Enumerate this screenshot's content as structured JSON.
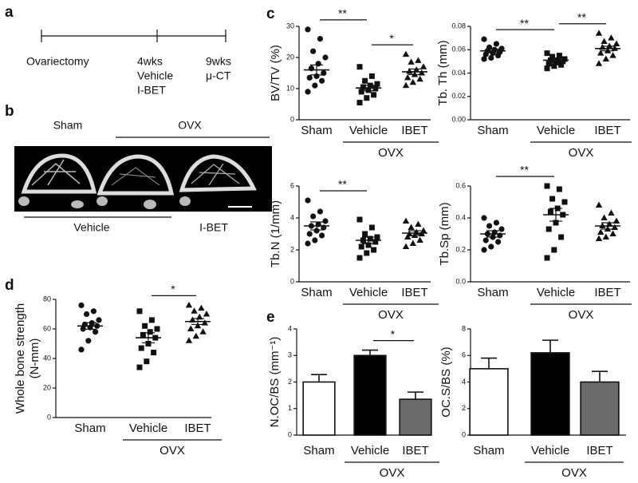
{
  "panel_labels": [
    "a",
    "b",
    "c",
    "d",
    "e"
  ],
  "timeline": {
    "events": [
      {
        "lines": [
          "Ovariectomy"
        ]
      },
      {
        "lines": [
          "4wks",
          "Vehicle",
          "I-BET"
        ]
      },
      {
        "lines": [
          "9wks",
          "μ-CT"
        ]
      }
    ]
  },
  "images": {
    "top_labels": [
      "Sham",
      "OVX"
    ],
    "bottom_labels": [
      "Vehicle",
      "I-BET"
    ]
  },
  "chart_data": [
    {
      "type": "dotplot",
      "y_label": "BV/TV (%)",
      "categories": [
        "Sham",
        "Vehicle",
        "IBET"
      ],
      "group_label": "OVX",
      "group_categories": [
        "Vehicle",
        "IBET"
      ],
      "markers": [
        "circle",
        "square",
        "triangle"
      ],
      "ylim": [
        0,
        30
      ],
      "yticks": [
        0,
        10,
        20,
        30
      ],
      "points": [
        [
          29,
          26,
          22,
          20,
          18,
          16.5,
          15,
          14,
          13.5,
          12.5,
          11,
          9
        ],
        [
          17,
          14,
          12.5,
          11.5,
          11,
          10.5,
          10,
          9.5,
          9,
          8,
          7,
          5.5
        ],
        [
          21,
          19,
          18.5,
          17,
          16,
          15.5,
          15,
          14.5,
          13.5,
          13,
          12,
          11
        ]
      ],
      "means": [
        16,
        10.2,
        15.4
      ],
      "sems": [
        1.6,
        0.9,
        0.9
      ],
      "brackets": [
        {
          "between": [
            "Sham",
            "Vehicle"
          ],
          "label": "**"
        },
        {
          "between": [
            "Vehicle",
            "IBET"
          ],
          "label": "*"
        }
      ]
    },
    {
      "type": "dotplot",
      "y_label": "Tb. Th (mm)",
      "categories": [
        "Sham",
        "Vehicle",
        "IBET"
      ],
      "group_label": "OVX",
      "group_categories": [
        "Vehicle",
        "IBET"
      ],
      "markers": [
        "circle",
        "square",
        "triangle"
      ],
      "ylim": [
        0,
        0.08
      ],
      "yticks": [
        {
          "value": 0,
          "label": "0.00"
        },
        0.02,
        0.04,
        0.06,
        0.08
      ],
      "points": [
        [
          0.069,
          0.065,
          0.062,
          0.061,
          0.06,
          0.059,
          0.058,
          0.057,
          0.056,
          0.055,
          0.053,
          0.052
        ],
        [
          0.057,
          0.055,
          0.054,
          0.052,
          0.051,
          0.051,
          0.05,
          0.049,
          0.048,
          0.047,
          0.046,
          0.044
        ],
        [
          0.074,
          0.07,
          0.067,
          0.065,
          0.063,
          0.062,
          0.061,
          0.059,
          0.057,
          0.055,
          0.052,
          0.048
        ]
      ],
      "means": [
        0.059,
        0.051,
        0.061
      ],
      "sems": [
        0.0015,
        0.001,
        0.002
      ],
      "brackets": [
        {
          "between": [
            "Sham",
            "Vehicle"
          ],
          "label": "**"
        },
        {
          "between": [
            "Vehicle",
            "IBET"
          ],
          "label": "**"
        }
      ]
    },
    {
      "type": "dotplot",
      "y_label": "Tb.N (1/mm)",
      "categories": [
        "Sham",
        "Vehicle",
        "IBET"
      ],
      "group_label": "OVX",
      "group_categories": [
        "Vehicle",
        "IBET"
      ],
      "markers": [
        "circle",
        "square",
        "triangle"
      ],
      "ylim": [
        0,
        6
      ],
      "yticks": [
        0,
        2,
        4,
        6
      ],
      "points": [
        [
          5.1,
          4.4,
          4.1,
          3.8,
          3.6,
          3.5,
          3.4,
          3.2,
          3.0,
          2.9,
          2.6,
          2.4
        ],
        [
          3.9,
          3.4,
          3.0,
          2.8,
          2.7,
          2.6,
          2.5,
          2.3,
          2.2,
          2.0,
          1.8,
          1.5
        ],
        [
          3.8,
          3.6,
          3.4,
          3.2,
          3.1,
          3.0,
          3.0,
          2.9,
          2.8,
          2.6,
          2.4,
          2.2
        ]
      ],
      "means": [
        3.5,
        2.6,
        3.05
      ],
      "sems": [
        0.25,
        0.2,
        0.15
      ],
      "brackets": [
        {
          "between": [
            "Sham",
            "Vehicle"
          ],
          "label": "**"
        }
      ]
    },
    {
      "type": "dotplot",
      "y_label": "Tb.Sp (mm)",
      "categories": [
        "Sham",
        "Vehicle",
        "IBET"
      ],
      "group_label": "OVX",
      "group_categories": [
        "Vehicle",
        "IBET"
      ],
      "markers": [
        "circle",
        "square",
        "triangle"
      ],
      "ylim": [
        0,
        0.6
      ],
      "yticks": [
        {
          "value": 0,
          "label": "0.0"
        },
        0.2,
        0.4,
        0.6
      ],
      "points": [
        [
          0.4,
          0.37,
          0.35,
          0.33,
          0.31,
          0.3,
          0.29,
          0.28,
          0.26,
          0.25,
          0.22,
          0.2
        ],
        [
          0.6,
          0.58,
          0.52,
          0.5,
          0.46,
          0.44,
          0.42,
          0.37,
          0.33,
          0.28,
          0.2,
          0.15
        ],
        [
          0.48,
          0.43,
          0.4,
          0.38,
          0.36,
          0.35,
          0.34,
          0.33,
          0.31,
          0.3,
          0.28,
          0.27
        ]
      ],
      "means": [
        0.3,
        0.42,
        0.35
      ],
      "sems": [
        0.02,
        0.04,
        0.02
      ],
      "brackets": [
        {
          "between": [
            "Sham",
            "Vehicle"
          ],
          "label": "**"
        }
      ]
    },
    {
      "type": "dotplot",
      "y_label": [
        "Whole bone strength",
        "(N-mm)"
      ],
      "categories": [
        "Sham",
        "Vehicle",
        "IBET"
      ],
      "group_label": "OVX",
      "group_categories": [
        "Vehicle",
        "IBET"
      ],
      "markers": [
        "circle",
        "square",
        "triangle"
      ],
      "ylim": [
        0,
        80
      ],
      "yticks": [
        0,
        20,
        40,
        60,
        80
      ],
      "points": [
        [
          76,
          72,
          70,
          66,
          64,
          63,
          62,
          61,
          60,
          58,
          52,
          46
        ],
        [
          72,
          66,
          62,
          60,
          58,
          56,
          54,
          50,
          47,
          44,
          38,
          34
        ],
        [
          76,
          74,
          72,
          70,
          68,
          66,
          64,
          62,
          60,
          58,
          55,
          52
        ]
      ],
      "means": [
        62,
        54,
        65
      ],
      "sems": [
        2.2,
        3.4,
        2
      ],
      "brackets": [
        {
          "between": [
            "Vehicle",
            "IBET"
          ],
          "label": "*"
        }
      ]
    },
    {
      "type": "bar",
      "y_label": "N.OC/BS (mm⁻¹)",
      "categories": [
        "Sham",
        "Vehicle",
        "IBET"
      ],
      "group_label": "OVX",
      "group_categories": [
        "Vehicle",
        "IBET"
      ],
      "colors": [
        "#ffffff",
        "#000000",
        "#6b6b6b"
      ],
      "ylim": [
        0,
        4
      ],
      "yticks": [
        0,
        1,
        2,
        3,
        4
      ],
      "values": [
        2.0,
        3.0,
        1.35
      ],
      "errors": [
        0.28,
        0.2,
        0.27
      ],
      "brackets": [
        {
          "between": [
            "Vehicle",
            "IBET"
          ],
          "label": "*"
        }
      ]
    },
    {
      "type": "bar",
      "y_label": "OC.S/BS (%)",
      "categories": [
        "Sham",
        "Vehicle",
        "IBET"
      ],
      "group_label": "OVX",
      "group_categories": [
        "Vehicle",
        "IBET"
      ],
      "colors": [
        "#ffffff",
        "#000000",
        "#6b6b6b"
      ],
      "ylim": [
        0,
        8
      ],
      "yticks": [
        0,
        2,
        4,
        6,
        8
      ],
      "values": [
        5.0,
        6.2,
        4.0
      ],
      "errors": [
        0.8,
        0.95,
        0.8
      ],
      "brackets": []
    }
  ]
}
